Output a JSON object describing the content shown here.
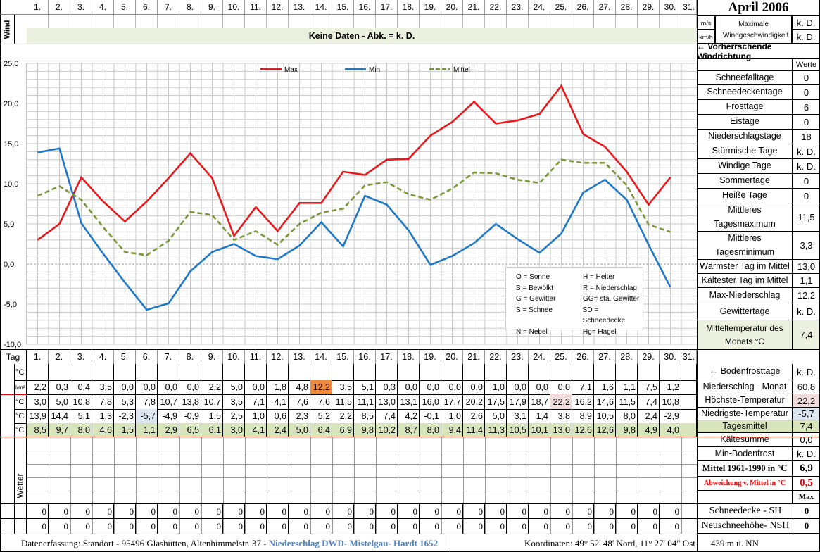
{
  "title": "April 2006",
  "days": [
    "1.",
    "2.",
    "3.",
    "4.",
    "5.",
    "6.",
    "7.",
    "8.",
    "9.",
    "10.",
    "11.",
    "12.",
    "13.",
    "14.",
    "15.",
    "16.",
    "17.",
    "18.",
    "19.",
    "20.",
    "21.",
    "22.",
    "23.",
    "24.",
    "25.",
    "26.",
    "27.",
    "28.",
    "29.",
    "30.",
    "31."
  ],
  "wind": {
    "label": "Wind",
    "unit_ms": "m/s",
    "unit_kmh": "km/h",
    "no_data": "Keine Daten - Abk. = k. D.",
    "max_label": "Maximale Windgeschwindigkeit",
    "max_ms": "k. D.",
    "max_kmh": "k. D.",
    "direction": "← Vorherrschende Windrichtung"
  },
  "stats": {
    "header": "Werte",
    "items": [
      {
        "label": "Schneefalltage",
        "value": "0"
      },
      {
        "label": "Schneedeckentage",
        "value": "0"
      },
      {
        "label": "Frosttage",
        "value": "6"
      },
      {
        "label": "Eistage",
        "value": "0"
      },
      {
        "label": "Niederschlagstage",
        "value": "18"
      },
      {
        "label": "Stürmische Tage",
        "value": "k. D."
      },
      {
        "label": "Windige Tage",
        "value": "k. D."
      },
      {
        "label": "Sommertage",
        "value": "0"
      },
      {
        "label": "Heiße Tage",
        "value": "0"
      },
      {
        "label": "Mittleres Tagesmaximum",
        "value": "11,5"
      },
      {
        "label": "Mittleres Tagesminimum",
        "value": "3,3"
      },
      {
        "label": "Wärmster Tag im Mittel",
        "value": "13,0"
      },
      {
        "label": "Kältester Tag im Mittel",
        "value": "1,1"
      },
      {
        "label": "Max-Niederschlag",
        "value": "12,2"
      },
      {
        "label": "Gewittertage",
        "value": "k. D."
      },
      {
        "label": "Mitteltemperatur des Monats °C",
        "value": "7,4"
      }
    ]
  },
  "chart_data": {
    "type": "line",
    "x": [
      1,
      2,
      3,
      4,
      5,
      6,
      7,
      8,
      9,
      10,
      11,
      12,
      13,
      14,
      15,
      16,
      17,
      18,
      19,
      20,
      21,
      22,
      23,
      24,
      25,
      26,
      27,
      28,
      29,
      30
    ],
    "ylim": [
      -10,
      25
    ],
    "yticks": [
      "25,0",
      "20,0",
      "15,0",
      "10,0",
      "5,0",
      "0,0",
      "-5,0",
      "-10,0"
    ],
    "grid": true,
    "legend": "top",
    "series": [
      {
        "name": "Max",
        "color": "#e8191c",
        "values": [
          3.0,
          5.0,
          10.8,
          7.8,
          5.3,
          7.8,
          10.7,
          13.8,
          10.7,
          3.5,
          7.1,
          4.1,
          7.6,
          7.6,
          11.5,
          11.1,
          13.0,
          13.1,
          16.0,
          17.7,
          20.2,
          17.5,
          17.9,
          18.7,
          22.2,
          16.2,
          14.6,
          11.5,
          7.4,
          10.8
        ]
      },
      {
        "name": "Min",
        "color": "#1f78c8",
        "values": [
          13.9,
          14.4,
          5.1,
          1.3,
          -2.3,
          -5.7,
          -4.9,
          -0.9,
          1.5,
          2.5,
          1.0,
          0.6,
          2.3,
          5.2,
          2.2,
          8.5,
          7.4,
          4.2,
          -0.1,
          1.0,
          2.6,
          5.0,
          3.1,
          1.4,
          3.8,
          8.9,
          10.5,
          8.0,
          2.4,
          -2.9
        ]
      },
      {
        "name": "Mittel",
        "color": "#7a9a3a",
        "dashed": true,
        "values": [
          8.5,
          9.7,
          8.0,
          4.6,
          1.5,
          1.1,
          2.9,
          6.5,
          6.1,
          3.0,
          4.1,
          2.4,
          5.0,
          6.4,
          6.9,
          9.8,
          10.2,
          8.7,
          8.0,
          9.4,
          11.4,
          11.3,
          10.5,
          10.1,
          13.0,
          12.6,
          12.6,
          9.8,
          4.9,
          4.0
        ]
      }
    ]
  },
  "legend_box": [
    [
      "O = Sonne",
      "H = Heiter"
    ],
    [
      "B = Bewölkt",
      "R = Niederschlag"
    ],
    [
      "G = Gewitter",
      "GG= sta. Gewitter"
    ],
    [
      "S = Schnee",
      "SD = Schneedecke"
    ],
    [
      "N = Nebel",
      "Hg= Hagel"
    ]
  ],
  "table": {
    "tag": "Tag",
    "rows": [
      {
        "unit": "°C",
        "values": []
      },
      {
        "unit": "l/m²",
        "values": [
          "2,2",
          "0,3",
          "0,4",
          "3,5",
          "0,0",
          "0,0",
          "0,0",
          "0,0",
          "2,2",
          "5,0",
          "0,0",
          "1,8",
          "4,8",
          "12,2",
          "3,5",
          "5,1",
          "0,3",
          "0,0",
          "0,0",
          "0,0",
          "0,0",
          "1,0",
          "0,0",
          "0,0",
          "0,0",
          "7,1",
          "1,6",
          "1,1",
          "7,5",
          "1,2"
        ]
      },
      {
        "unit": "°C",
        "values": [
          "3,0",
          "5,0",
          "10,8",
          "7,8",
          "5,3",
          "7,8",
          "10,7",
          "13,8",
          "10,7",
          "3,5",
          "7,1",
          "4,1",
          "7,6",
          "7,6",
          "11,5",
          "11,1",
          "13,0",
          "13,1",
          "16,0",
          "17,7",
          "20,2",
          "17,5",
          "17,9",
          "18,7",
          "22,2",
          "16,2",
          "14,6",
          "11,5",
          "7,4",
          "10,8"
        ]
      },
      {
        "unit": "°C",
        "values": [
          "13,9",
          "14,4",
          "5,1",
          "1,3",
          "-2,3",
          "-5,7",
          "-4,9",
          "-0,9",
          "1,5",
          "2,5",
          "1,0",
          "0,6",
          "2,3",
          "5,2",
          "2,2",
          "8,5",
          "7,4",
          "4,2",
          "-0,1",
          "1,0",
          "2,6",
          "5,0",
          "3,1",
          "1,4",
          "3,8",
          "8,9",
          "10,5",
          "8,0",
          "2,4",
          "-2,9"
        ]
      },
      {
        "unit": "°C",
        "values": [
          "8,5",
          "9,7",
          "8,0",
          "4,6",
          "1,5",
          "1,1",
          "2,9",
          "6,5",
          "6,1",
          "3,0",
          "4,1",
          "2,4",
          "5,0",
          "6,4",
          "6,9",
          "9,8",
          "10,2",
          "8,7",
          "8,0",
          "9,4",
          "11,4",
          "11,3",
          "10,5",
          "10,1",
          "13,0",
          "12,6",
          "12,6",
          "9,8",
          "4,9",
          "4,0"
        ]
      }
    ],
    "wetter_label": "Wetter",
    "snow_sh": [
      "0",
      "0",
      "0",
      "0",
      "0",
      "0",
      "0",
      "0",
      "0",
      "0",
      "0",
      "0",
      "0",
      "0",
      "0",
      "0",
      "0",
      "0",
      "0",
      "0",
      "0",
      "0",
      "0",
      "0",
      "0",
      "0",
      "0",
      "0",
      "0",
      "0"
    ],
    "snow_nsh": [
      "0",
      "0",
      "0",
      "0",
      "0",
      "0",
      "0",
      "0",
      "0",
      "0",
      "0",
      "0",
      "0",
      "0",
      "0",
      "0",
      "0",
      "0",
      "0",
      "0",
      "0",
      "0",
      "0",
      "0",
      "0",
      "0",
      "0",
      "0",
      "0",
      "0"
    ]
  },
  "summary": [
    {
      "label": "← Bodenfrosttage",
      "value": "k. D."
    },
    {
      "label": "Niederschlag - Monat",
      "value": "60,8"
    },
    {
      "label": "Höchste-Temperatur",
      "value": "22,2",
      "bg": "#f2dcdb"
    },
    {
      "label": "Niedrigste-Temperatur",
      "value": "-5,7",
      "bg": "#dce6f1"
    },
    {
      "label": "Tagesmittel",
      "value": "7,4",
      "bg": "#d8e4bc"
    },
    {
      "label": "Kältesumme",
      "value": "0,0"
    },
    {
      "label": "Min-Bodenfrost",
      "value": "k. D."
    },
    {
      "label": "Mittel 1961-1990 in °C",
      "value": "6,9"
    },
    {
      "label": "Abweichung v. Mittel in °C",
      "value": "0,5"
    },
    {
      "label": "",
      "value": "Max"
    },
    {
      "label": "Schneedecke -   SH",
      "value": "0"
    },
    {
      "label": "Neuschneehöhe- NSH",
      "value": "0"
    }
  ],
  "footer": {
    "left": "Datenerfassung:  Standort -  95496  Glashütten, Altenhimmelstr. 37 - ",
    "link": "Niederschlag DWD- Mistelgau- Hardt 1652",
    "coords": "Koordinaten:  49° 52' 48' Nord,   11° 27' 04\" Ost",
    "height": "439 m ü. NN"
  }
}
